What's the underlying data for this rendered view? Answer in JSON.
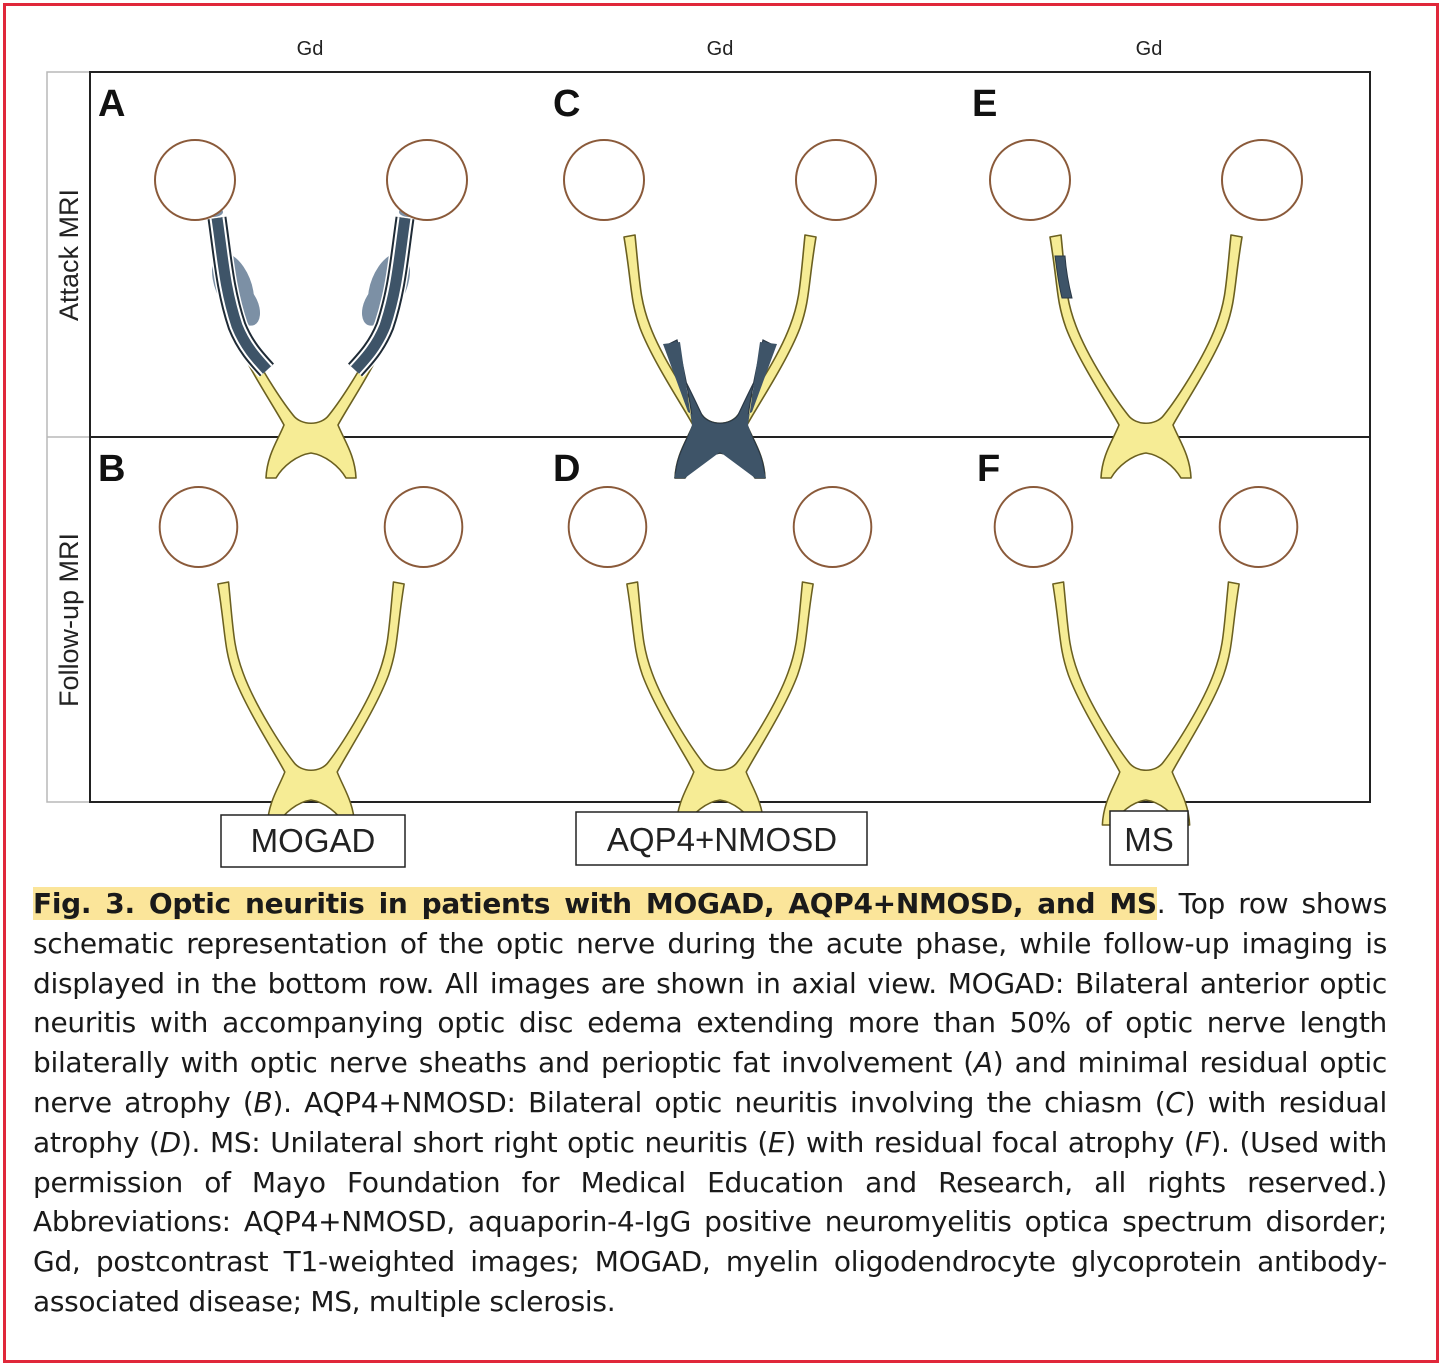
{
  "figure": {
    "column_labels": [
      "Gd",
      "Gd",
      "Gd"
    ],
    "row_labels": [
      "Attack MRI",
      "Follow-up MRI"
    ],
    "panel_letters": [
      "A",
      "C",
      "E",
      "B",
      "D",
      "F"
    ],
    "group_labels": [
      "MOGAD",
      "AQP4+NMOSD",
      "MS"
    ],
    "colors": {
      "nerve": "#f6ec95",
      "nerve_outline": "#6b6020",
      "globe_outline": "#8a5a3a",
      "lesion": "#3e5468",
      "edema": "#6e849c",
      "frame": "#e0283a",
      "highlight": "#fbe59a"
    }
  },
  "caption": {
    "title": "Fig. 3. Optic neuritis in patients with MOGAD, AQP4+NMOSD, and MS",
    "p1": ". Top row shows schematic representation of the optic nerve during the acute phase, while follow-up imaging is displayed in the bottom row. All images are shown in axial view. MOGAD: Bilateral anterior optic neuritis with accompanying optic disc edema extending more than 50% of optic nerve length bilaterally with optic nerve sheaths and perioptic fat involvement (",
    "ref_a": "A",
    "p2": ") and minimal residual optic nerve atrophy (",
    "ref_b": "B",
    "p3": "). AQP4+NMOSD: Bilateral optic neuritis involving the chiasm (",
    "ref_c": "C",
    "p4": ") with residual atrophy (",
    "ref_d": "D",
    "p5": "). MS: Unilateral short right optic neuritis (",
    "ref_e": "E",
    "p6": ") with residual focal atrophy (",
    "ref_f": "F",
    "p7": "). (Used with permission of Mayo Foundation for Medical Education and Research, all rights reserved.) Abbreviations: AQP4+NMOSD, aquaporin-4-IgG positive neuromyelitis optica spectrum disorder; Gd, postcontrast T1-weighted images; MOGAD, myelin oligodendrocyte glycoprotein antibody-associated disease; MS, multiple sclerosis."
  }
}
